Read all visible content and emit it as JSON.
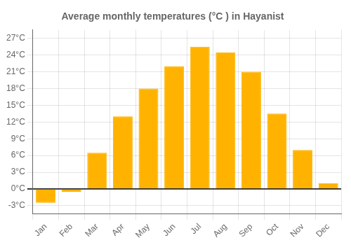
{
  "chart_data": {
    "type": "bar",
    "title": "Average monthly temperatures (°C ) in Hayanist",
    "categories": [
      "Jan",
      "Feb",
      "Mar",
      "Apr",
      "May",
      "Jun",
      "Jul",
      "Aug",
      "Sep",
      "Oct",
      "Nov",
      "Dec"
    ],
    "values": [
      -2.5,
      -0.5,
      6.5,
      13.0,
      18.0,
      22.0,
      25.5,
      24.5,
      21.0,
      13.5,
      7.0,
      1.0
    ],
    "color": "#FFB300",
    "ylim": [
      -4.5,
      28.5
    ],
    "yticks": [
      {
        "value": -3,
        "label": "-3°C"
      },
      {
        "value": 0,
        "label": "0°C"
      },
      {
        "value": 3,
        "label": "3°C"
      },
      {
        "value": 6,
        "label": "6°C"
      },
      {
        "value": 9,
        "label": "9°C"
      },
      {
        "value": 12,
        "label": "12°C"
      },
      {
        "value": 15,
        "label": "15°C"
      },
      {
        "value": 18,
        "label": "18°C"
      },
      {
        "value": 21,
        "label": "21°C"
      },
      {
        "value": 24,
        "label": "24°C"
      },
      {
        "value": 27,
        "label": "27°C"
      }
    ],
    "grid": true
  }
}
